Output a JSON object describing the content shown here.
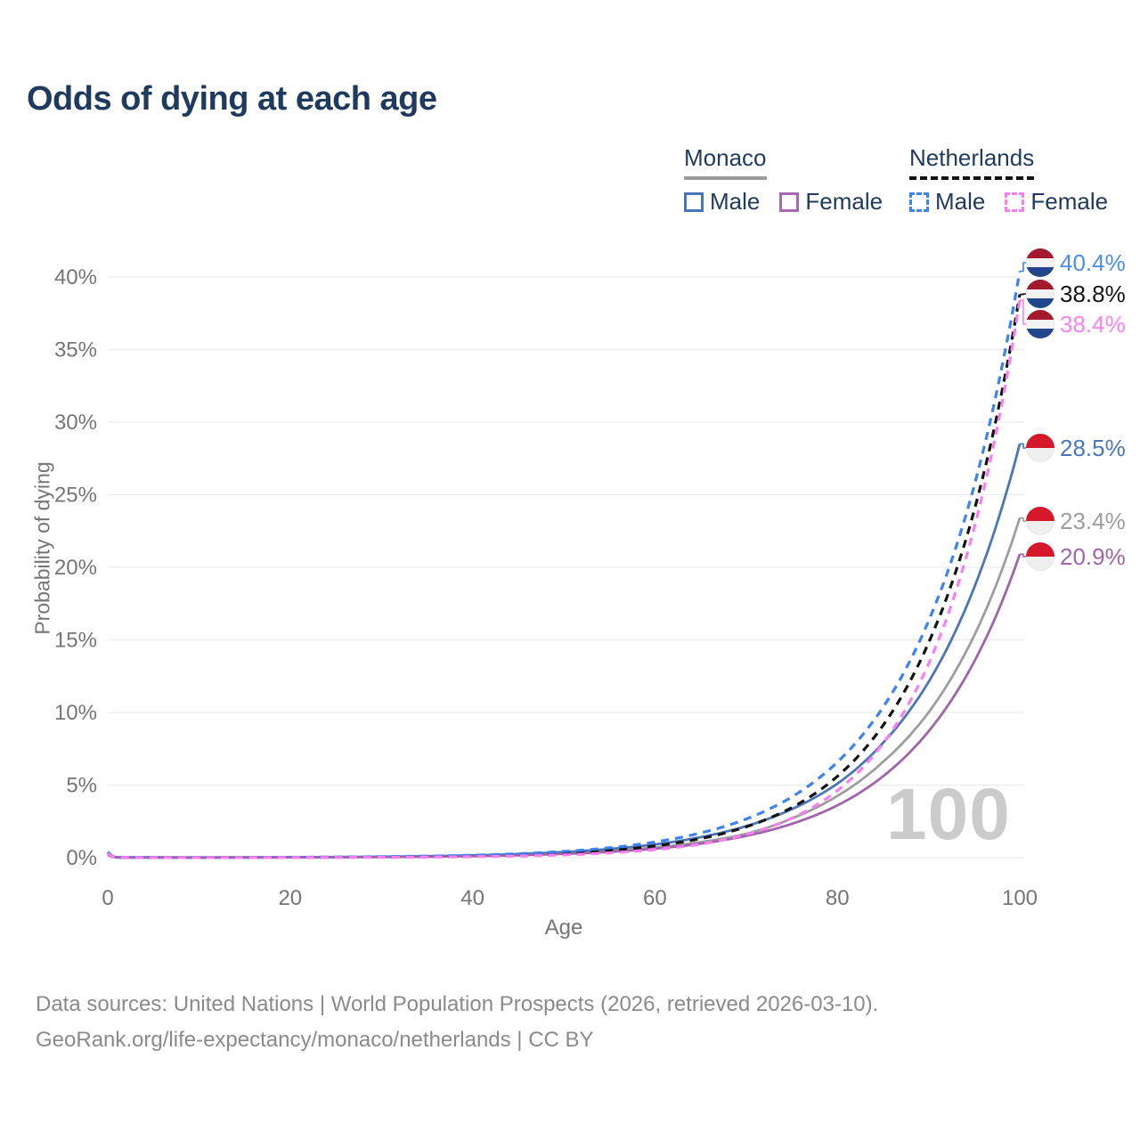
{
  "title": "Odds of dying at each age",
  "legend": {
    "groups": [
      {
        "id": "monaco",
        "label": "Monaco",
        "line_style": "solid",
        "underline_color": "#9b9b9b",
        "items": [
          {
            "id": "mc_male",
            "label": "Male",
            "color": "#4a76b9"
          },
          {
            "id": "mc_female",
            "label": "Female",
            "color": "#a968b3"
          }
        ]
      },
      {
        "id": "netherlands",
        "label": "Netherlands",
        "line_style": "dashed",
        "underline_color": "#111111",
        "items": [
          {
            "id": "nl_male",
            "label": "Male",
            "color": "#3b82f6"
          },
          {
            "id": "nl_female",
            "label": "Female",
            "color": "#fa7ef0"
          }
        ]
      }
    ]
  },
  "chart_data": {
    "type": "line",
    "title": "Odds of dying at each age",
    "xlabel": "Age",
    "ylabel": "Probability of dying",
    "x_ticks": [
      0,
      20,
      40,
      60,
      80,
      100
    ],
    "y_ticks": [
      "0%",
      "5%",
      "10%",
      "15%",
      "20%",
      "25%",
      "30%",
      "35%",
      "40%"
    ],
    "xlim": [
      0,
      100
    ],
    "ylim_pct": [
      0,
      41
    ],
    "grid": true,
    "legend_position": "top-right",
    "watermark": "100",
    "ages": [
      0,
      1,
      10,
      20,
      30,
      40,
      50,
      55,
      60,
      65,
      70,
      75,
      80,
      85,
      90,
      95,
      100
    ],
    "series": [
      {
        "name": "Netherlands Male",
        "country": "Netherlands",
        "sex": "Male",
        "color": "#3b82f6",
        "dash": "dashed",
        "end_label": "40.4%",
        "flag": "netherlands",
        "values_pct": [
          0.4,
          0.03,
          0.011,
          0.028,
          0.07,
          0.17,
          0.43,
          0.68,
          1.08,
          1.7,
          2.66,
          4.18,
          6.58,
          10.35,
          16.3,
          25.6,
          40.4
        ]
      },
      {
        "name": "Netherlands",
        "country": "Netherlands",
        "sex": "Both",
        "color": "#141414",
        "dash": "dashed",
        "end_label": "38.8%",
        "flag": "netherlands",
        "values_pct": [
          0.35,
          0.025,
          0.007,
          0.017,
          0.045,
          0.12,
          0.31,
          0.5,
          0.81,
          1.31,
          2.13,
          3.45,
          5.6,
          9.1,
          14.8,
          23.9,
          38.8
        ]
      },
      {
        "name": "Netherlands Female",
        "country": "Netherlands",
        "sex": "Female",
        "color": "#fa7ef0",
        "dash": "dashed",
        "end_label": "38.4%",
        "flag": "netherlands",
        "values_pct": [
          0.3,
          0.02,
          0.004,
          0.009,
          0.023,
          0.067,
          0.19,
          0.33,
          0.55,
          0.93,
          1.6,
          2.72,
          4.62,
          7.86,
          13.35,
          22.7,
          38.4
        ]
      },
      {
        "name": "Monaco Male",
        "country": "Monaco",
        "sex": "Male",
        "color": "#4a76b9",
        "dash": "solid",
        "end_label": "28.5%",
        "flag": "monaco",
        "values_pct": [
          0.3,
          0.025,
          0.012,
          0.03,
          0.07,
          0.16,
          0.39,
          0.6,
          0.91,
          1.41,
          2.17,
          3.34,
          5.1,
          7.9,
          12.1,
          18.6,
          28.5
        ]
      },
      {
        "name": "Monaco",
        "country": "Monaco",
        "sex": "Both",
        "color": "#9e9e9e",
        "dash": "solid",
        "end_label": "23.4%",
        "flag": "monaco",
        "values_pct": [
          0.25,
          0.02,
          0.01,
          0.024,
          0.055,
          0.13,
          0.3,
          0.46,
          0.7,
          1.07,
          1.64,
          2.7,
          4.25,
          6.6,
          10.0,
          15.3,
          23.4
        ]
      },
      {
        "name": "Monaco Female",
        "country": "Monaco",
        "sex": "Female",
        "color": "#a263ad",
        "dash": "solid",
        "end_label": "20.9%",
        "flag": "monaco",
        "values_pct": [
          0.2,
          0.015,
          0.008,
          0.019,
          0.045,
          0.108,
          0.26,
          0.4,
          0.62,
          0.97,
          1.5,
          2.33,
          3.6,
          5.6,
          8.7,
          13.5,
          20.9
        ]
      }
    ]
  },
  "footer": {
    "line1": "Data sources: United Nations | World Population Prospects (2026, retrieved 2026-03-10).",
    "line2": "GeoRank.org/life-expectancy/monaco/netherlands | CC BY"
  }
}
